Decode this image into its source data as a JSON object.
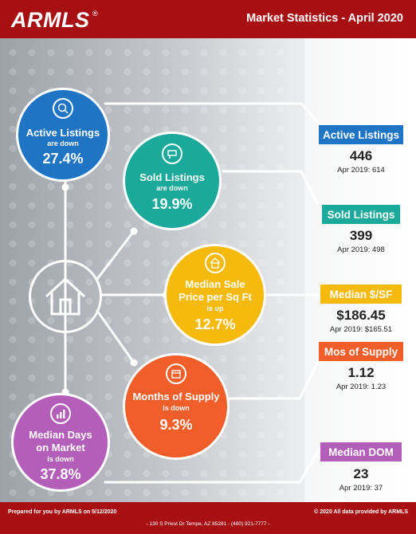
{
  "header": {
    "logo": "ARMLS",
    "logo_mark": "®",
    "title": "Market Statistics - April 2020",
    "bg_color": "#a80f13"
  },
  "circles": [
    {
      "label": "Active Listings",
      "direction": "are down",
      "percent": "27.4%",
      "color": "#1f74c4",
      "icon": "magnifier-house-icon"
    },
    {
      "label": "Sold Listings",
      "direction": "are down",
      "percent": "19.9%",
      "color": "#1aa99a",
      "icon": "sign-icon"
    },
    {
      "label": "Median Sale Price per Sq Ft",
      "label_lines": [
        "Median Sale",
        "Price per Sq Ft"
      ],
      "direction": "is up",
      "percent": "12.7%",
      "color": "#f6ba0d",
      "icon": "house-dollar-icon"
    },
    {
      "label": "Months of Supply",
      "direction": "is down",
      "percent": "9.3%",
      "color": "#f15e2a",
      "icon": "calendar-icon"
    },
    {
      "label": "Median Days on Market",
      "label_lines": [
        "Median Days",
        "on Market"
      ],
      "direction": "is down",
      "percent": "37.8%",
      "color": "#b35eb8",
      "icon": "bar-chart-icon"
    }
  ],
  "stats": [
    {
      "badge": "Active Listings",
      "value": "446",
      "prior": "Apr 2019: 614",
      "color": "#1f74c4"
    },
    {
      "badge": "Sold Listings",
      "value": "399",
      "prior": "Apr 2019: 498",
      "color": "#1aa99a"
    },
    {
      "badge": "Median $/SF",
      "value": "$186.45",
      "prior": "Apr 2019: $165.51",
      "color": "#f6ba0d"
    },
    {
      "badge": "Mos of Supply",
      "value": "1.12",
      "prior": "Apr 2019: 1.23",
      "color": "#f15e2a"
    },
    {
      "badge": "Median DOM",
      "value": "23",
      "prior": "Apr 2019: 37",
      "color": "#b35eb8"
    }
  ],
  "footer": {
    "prepared": "Prepared for you by ARMLS on 5/12/2020",
    "copyright": "© 2020 All data provided by ARMLS",
    "address": "- 130 S Priest Dr   Tempe, AZ 85281 - (480) 921-7777 -"
  }
}
